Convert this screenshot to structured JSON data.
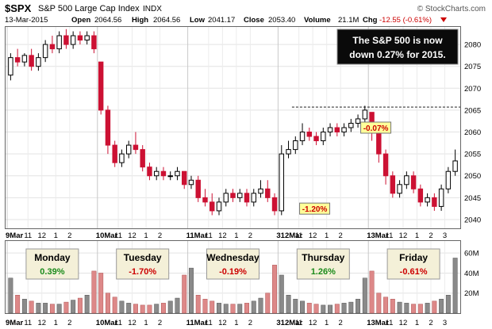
{
  "header": {
    "symbol": "$SPX",
    "name": "S&P 500 Large Cap Index",
    "exchange": "INDX",
    "date": "13-Mar-2015",
    "open_label": "Open",
    "open": "2064.56",
    "high_label": "High",
    "high": "2064.56",
    "low_label": "Low",
    "low": "2041.17",
    "close_label": "Close",
    "close": "2053.40",
    "volume_label": "Volume",
    "volume": "21.1M",
    "chg_label": "Chg",
    "chg": "-12.55 (-0.61%)",
    "copyright": "© StockCharts.com"
  },
  "callout": {
    "line1": "The S&P 500 is now",
    "line2": "down 0.27% for 2015."
  },
  "annotations": [
    {
      "text": "-0.07%",
      "x": 50.4,
      "y": 2061.0
    },
    {
      "text": "-1.20%",
      "x": 41.6,
      "y": 2042.5
    }
  ],
  "reference_line": {
    "y": 2065.7,
    "x_start": 40.5
  },
  "days": [
    {
      "name": "Monday",
      "change": "0.39%",
      "color": "#1a8a1a"
    },
    {
      "name": "Tuesday",
      "change": "-1.70%",
      "color": "#cc0000"
    },
    {
      "name": "Wednesday",
      "change": "-0.19%",
      "color": "#cc0000"
    },
    {
      "name": "Thursday",
      "change": "1.26%",
      "color": "#1a8a1a"
    },
    {
      "name": "Friday",
      "change": "-0.61%",
      "color": "#cc0000"
    }
  ],
  "colors": {
    "up_candle": "#000000",
    "down_candle": "#cc1133",
    "volume_up": "#8a8a8a",
    "volume_down": "#dd8888",
    "day_box_fill": "#f4f0d8",
    "callout_fill": "#0a0a0a",
    "annotation_fill": "#ffff99",
    "background": "#ffffff"
  },
  "chart_data": {
    "type": "candlestick",
    "interval": "30-minute",
    "x_tick_labels": [
      "9Mar",
      "11",
      "12",
      "1",
      "2",
      "10Mar",
      "11",
      "12",
      "1",
      "2",
      "11Mar",
      "11",
      "12",
      "1",
      "2",
      "312Mar",
      "11",
      "12",
      "1",
      "2",
      "13Mar",
      "11",
      "12",
      "1",
      "2",
      "3"
    ],
    "y_axis_ticks": [
      2040,
      2045,
      2050,
      2055,
      2060,
      2065,
      2070,
      2075,
      2080
    ],
    "ylim": [
      2038,
      2084
    ],
    "volume_axis_ticks": [
      "20M",
      "40M",
      "60M"
    ],
    "volume_ylim": [
      0,
      72
    ],
    "series": [
      {
        "name": "Mon 9-Mar",
        "ohlc": [
          [
            2073.0,
            2078.0,
            2071.8,
            2077.0
          ],
          [
            2077.0,
            2079.0,
            2075.0,
            2076.0
          ],
          [
            2076.0,
            2078.0,
            2075.0,
            2077.5
          ],
          [
            2077.5,
            2079.0,
            2074.0,
            2075.0
          ],
          [
            2075.0,
            2078.0,
            2074.0,
            2077.0
          ],
          [
            2077.0,
            2081.0,
            2076.0,
            2080.0
          ],
          [
            2080.0,
            2082.0,
            2078.0,
            2079.0
          ],
          [
            2079.0,
            2083.0,
            2078.0,
            2082.0
          ],
          [
            2082.0,
            2083.5,
            2079.0,
            2080.0
          ],
          [
            2080.0,
            2083.0,
            2079.0,
            2082.0
          ],
          [
            2082.0,
            2083.0,
            2080.0,
            2081.0
          ],
          [
            2081.0,
            2083.0,
            2080.0,
            2082.0
          ],
          [
            2082.0,
            2083.0,
            2078.0,
            2079.0
          ]
        ],
        "volume": [
          35,
          18,
          14,
          12,
          10,
          10,
          9,
          9,
          11,
          13,
          15,
          18,
          42
        ]
      },
      {
        "name": "Tue 10-Mar",
        "ohlc": [
          [
            2076.0,
            2076.0,
            2064.0,
            2065.0
          ],
          [
            2065.0,
            2066.0,
            2055.0,
            2057.0
          ],
          [
            2057.0,
            2058.0,
            2052.0,
            2053.0
          ],
          [
            2053.0,
            2056.0,
            2052.0,
            2055.0
          ],
          [
            2055.0,
            2058.0,
            2054.0,
            2057.0
          ],
          [
            2057.0,
            2060.0,
            2055.0,
            2056.0
          ],
          [
            2056.0,
            2057.0,
            2051.0,
            2052.0
          ],
          [
            2052.0,
            2053.0,
            2049.0,
            2050.0
          ],
          [
            2050.0,
            2052.0,
            2049.0,
            2051.0
          ],
          [
            2051.0,
            2052.0,
            2049.0,
            2050.0
          ],
          [
            2050.0,
            2051.0,
            2049.0,
            2050.0
          ],
          [
            2050.0,
            2052.0,
            2049.0,
            2051.0
          ],
          [
            2051.0,
            2051.0,
            2047.0,
            2048.0
          ]
        ],
        "volume": [
          40,
          20,
          16,
          12,
          10,
          9,
          8,
          8,
          9,
          10,
          12,
          15,
          38
        ]
      },
      {
        "name": "Wed 11-Mar",
        "ohlc": [
          [
            2048.0,
            2050.0,
            2047.0,
            2049.0
          ],
          [
            2049.0,
            2050.0,
            2044.0,
            2045.0
          ],
          [
            2045.0,
            2047.0,
            2043.0,
            2044.0
          ],
          [
            2044.0,
            2046.0,
            2041.0,
            2042.0
          ],
          [
            2042.0,
            2045.0,
            2041.0,
            2044.0
          ],
          [
            2044.0,
            2047.0,
            2043.0,
            2046.0
          ],
          [
            2046.0,
            2047.0,
            2044.0,
            2045.0
          ],
          [
            2045.0,
            2047.0,
            2044.0,
            2046.0
          ],
          [
            2046.0,
            2047.0,
            2043.0,
            2044.0
          ],
          [
            2044.0,
            2047.0,
            2043.0,
            2046.0
          ],
          [
            2046.0,
            2049.0,
            2045.0,
            2047.0
          ],
          [
            2047.0,
            2049.0,
            2044.0,
            2045.0
          ],
          [
            2045.0,
            2046.0,
            2041.0,
            2042.0
          ]
        ],
        "volume": [
          45,
          18,
          14,
          12,
          10,
          9,
          9,
          9,
          10,
          12,
          15,
          20,
          48
        ]
      },
      {
        "name": "Thu 12-Mar",
        "ohlc": [
          [
            2042.0,
            2057.0,
            2041.0,
            2055.0
          ],
          [
            2055.0,
            2058.0,
            2054.0,
            2056.0
          ],
          [
            2056.0,
            2059.0,
            2055.0,
            2058.0
          ],
          [
            2058.0,
            2062.0,
            2057.0,
            2060.0
          ],
          [
            2060.0,
            2061.0,
            2058.0,
            2059.0
          ],
          [
            2059.0,
            2060.0,
            2057.0,
            2058.0
          ],
          [
            2058.0,
            2061.0,
            2057.0,
            2060.0
          ],
          [
            2060.0,
            2062.0,
            2059.0,
            2061.0
          ],
          [
            2061.0,
            2062.0,
            2059.0,
            2060.0
          ],
          [
            2060.0,
            2062.0,
            2059.0,
            2061.0
          ],
          [
            2061.0,
            2063.0,
            2060.0,
            2062.0
          ],
          [
            2062.0,
            2064.0,
            2061.0,
            2063.0
          ],
          [
            2063.0,
            2066.0,
            2062.0,
            2065.0
          ]
        ],
        "volume": [
          38,
          18,
          14,
          12,
          10,
          9,
          8,
          8,
          9,
          10,
          11,
          14,
          35
        ]
      },
      {
        "name": "Fri 13-Mar",
        "ohlc": [
          [
            2064.5,
            2064.5,
            2058.0,
            2060.0
          ],
          [
            2060.0,
            2061.0,
            2053.0,
            2055.0
          ],
          [
            2055.0,
            2056.0,
            2048.0,
            2050.0
          ],
          [
            2050.0,
            2051.0,
            2045.0,
            2046.0
          ],
          [
            2046.0,
            2049.0,
            2045.0,
            2048.0
          ],
          [
            2048.0,
            2051.0,
            2047.0,
            2050.0
          ],
          [
            2050.0,
            2051.0,
            2046.0,
            2047.0
          ],
          [
            2047.0,
            2048.0,
            2043.0,
            2044.0
          ],
          [
            2044.0,
            2046.0,
            2043.0,
            2045.0
          ],
          [
            2045.0,
            2046.0,
            2042.0,
            2043.0
          ],
          [
            2043.0,
            2048.0,
            2042.0,
            2047.0
          ],
          [
            2047.0,
            2052.0,
            2046.0,
            2051.0
          ],
          [
            2051.0,
            2056.0,
            2050.0,
            2053.4
          ]
        ],
        "volume": [
          42,
          20,
          16,
          14,
          11,
          10,
          9,
          9,
          10,
          12,
          14,
          18,
          55
        ]
      }
    ]
  }
}
